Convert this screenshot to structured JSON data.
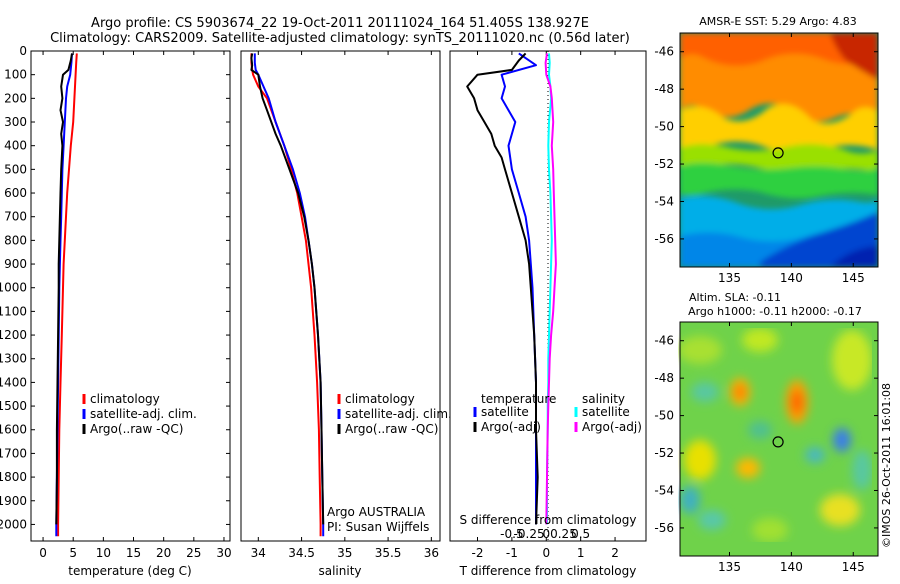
{
  "header": {
    "title_line1": "Argo profile: CS 5903674_22 19-Oct-2011 20111024_164 51.405S 138.927E",
    "title_line2": "Climatology: CARS2009. Satellite-adjusted climatology: synTS_20111020.nc (0.56d later)"
  },
  "colors": {
    "climatology": "#ff0000",
    "satellite": "#0000ff",
    "argo": "#000000",
    "salinity_satellite": "#00ffff",
    "salinity_argo": "#ff00ff"
  },
  "depth_ticks": [
    "0",
    "100",
    "200",
    "300",
    "400",
    "500",
    "600",
    "700",
    "800",
    "900",
    "1000",
    "1100",
    "1200",
    "1300",
    "1400",
    "1500",
    "1600",
    "1700",
    "1800",
    "1900",
    "2000"
  ],
  "chart_data": [
    {
      "type": "line",
      "panel": "temperature",
      "xlabel": "temperature (deg C)",
      "xlim": [
        -2,
        31
      ],
      "ylim": [
        2070,
        0
      ],
      "ylabel": "",
      "x_ticks": [
        "0",
        "5",
        "10",
        "15",
        "20",
        "25",
        "30"
      ],
      "x_tick_values": [
        0,
        5,
        10,
        15,
        20,
        25,
        30
      ],
      "legend": [
        "climatology",
        "satellite-adj. clim.",
        "Argo(..raw -QC)"
      ],
      "legend_position": "lower-middle",
      "series": [
        {
          "name": "climatology",
          "color": "#ff0000",
          "depth": [
            10,
            50,
            100,
            150,
            200,
            300,
            400,
            500,
            600,
            700,
            800,
            900,
            1000,
            1200,
            1400,
            1600,
            1800,
            2000,
            2050
          ],
          "values": [
            5.6,
            5.5,
            5.4,
            5.3,
            5.2,
            5.0,
            4.6,
            4.3,
            4.0,
            3.8,
            3.6,
            3.4,
            3.3,
            3.1,
            2.9,
            2.7,
            2.6,
            2.5,
            2.5
          ]
        },
        {
          "name": "satellite-adj. clim.",
          "color": "#0000ff",
          "depth": [
            10,
            50,
            100,
            150,
            200,
            300,
            400,
            500,
            600,
            700,
            800,
            900,
            1000,
            1200,
            1400,
            1600,
            1800,
            2000,
            2050
          ],
          "values": [
            4.8,
            4.7,
            4.5,
            4.0,
            3.8,
            3.6,
            3.4,
            3.2,
            3.1,
            3.0,
            2.9,
            2.8,
            2.7,
            2.6,
            2.5,
            2.4,
            2.3,
            2.2,
            2.2
          ]
        },
        {
          "name": "Argo(..raw -QC)",
          "color": "#000000",
          "depth": [
            10,
            40,
            80,
            100,
            150,
            200,
            250,
            300,
            350,
            400,
            500,
            600,
            700,
            800,
            900,
            1000,
            1200,
            1400,
            1600,
            1800,
            2000
          ],
          "values": [
            4.8,
            4.6,
            4.2,
            3.3,
            3.0,
            3.2,
            2.9,
            3.3,
            3.0,
            3.2,
            3.0,
            2.9,
            2.8,
            2.7,
            2.6,
            2.6,
            2.5,
            2.4,
            2.3,
            2.3,
            2.2
          ]
        }
      ]
    },
    {
      "type": "line",
      "panel": "salinity",
      "xlabel": "salinity",
      "xlim": [
        33.8,
        36.1
      ],
      "ylim": [
        2070,
        0
      ],
      "ylabel": "",
      "x_ticks": [
        "34",
        "34.5",
        "35",
        "35.5",
        "36"
      ],
      "x_tick_values": [
        34,
        34.5,
        35,
        35.5,
        36
      ],
      "legend": [
        "climatology",
        "satellite-adj. clim.",
        "Argo(..raw -QC)"
      ],
      "legend_position": "lower-middle",
      "annotation": {
        "line1": "Argo AUSTRALIA",
        "line2": "PI: Susan Wijffels"
      },
      "series": [
        {
          "name": "climatology",
          "color": "#ff0000",
          "depth": [
            10,
            50,
            80,
            100,
            150,
            200,
            300,
            400,
            500,
            600,
            700,
            800,
            900,
            1000,
            1200,
            1400,
            1600,
            1800,
            2000,
            2050
          ],
          "values": [
            33.92,
            33.92,
            33.93,
            33.94,
            34.0,
            34.1,
            34.2,
            34.3,
            34.38,
            34.45,
            34.5,
            34.55,
            34.58,
            34.61,
            34.65,
            34.68,
            34.7,
            34.71,
            34.72,
            34.72
          ]
        },
        {
          "name": "satellite-adj. clim.",
          "color": "#0000ff",
          "depth": [
            10,
            50,
            80,
            100,
            150,
            200,
            300,
            400,
            500,
            600,
            700,
            800,
            900,
            1000,
            1200,
            1400,
            1600,
            1800,
            2000,
            2050
          ],
          "values": [
            33.96,
            33.96,
            33.97,
            34.0,
            34.06,
            34.12,
            34.2,
            34.3,
            34.4,
            34.48,
            34.54,
            34.58,
            34.62,
            34.65,
            34.69,
            34.72,
            34.73,
            34.74,
            34.75,
            34.75
          ]
        },
        {
          "name": "Argo(..raw -QC)",
          "color": "#000000",
          "depth": [
            10,
            30,
            60,
            80,
            100,
            150,
            200,
            250,
            300,
            350,
            400,
            500,
            600,
            700,
            800,
            900,
            1000,
            1200,
            1400,
            1600,
            1800,
            2000
          ],
          "values": [
            33.93,
            33.92,
            33.93,
            33.92,
            34.0,
            34.02,
            34.05,
            34.1,
            34.15,
            34.2,
            34.26,
            34.36,
            34.46,
            34.53,
            34.58,
            34.62,
            34.65,
            34.69,
            34.72,
            34.73,
            34.74,
            34.75
          ]
        }
      ]
    },
    {
      "type": "line",
      "panel": "difference",
      "xlabel": "T difference from climatology",
      "xlabel_top": "S difference from climatology",
      "xlim": [
        -2.8,
        2.9
      ],
      "ylim": [
        2070,
        0
      ],
      "ylabel": "",
      "x_ticks": [
        "-2",
        "-1",
        "0",
        "1",
        "2"
      ],
      "x_tick_values": [
        -2,
        -1,
        0,
        1,
        2
      ],
      "s_ticks": [
        "-0.5",
        "-0.25",
        "0",
        "0.25",
        "0.5"
      ],
      "s_tick_values": [
        -0.5,
        -0.25,
        0,
        0.25,
        0.5
      ],
      "legend": {
        "temperature_title": "temperature",
        "salinity_title": "salinity",
        "entries": [
          "satellite",
          "Argo(-adj)",
          "satellite",
          "Argo(-adj)"
        ]
      },
      "series": [
        {
          "name": "satellite",
          "color": "#0000ff",
          "quantity": "temperature",
          "depth": [
            10,
            30,
            60,
            100,
            150,
            200,
            300,
            400,
            500,
            600,
            700,
            800,
            900,
            1000,
            1200,
            1400,
            1600,
            1800,
            2000
          ],
          "values": [
            -0.8,
            -0.6,
            -0.3,
            -1.3,
            -1.2,
            -1.3,
            -0.9,
            -1.1,
            -1.0,
            -0.8,
            -0.6,
            -0.5,
            -0.45,
            -0.4,
            -0.35,
            -0.3,
            -0.3,
            -0.3,
            -0.3
          ]
        },
        {
          "name": "Argo(-adj)",
          "color": "#000000",
          "quantity": "temperature",
          "depth": [
            10,
            40,
            80,
            100,
            150,
            200,
            250,
            300,
            350,
            400,
            450,
            500,
            600,
            700,
            800,
            900,
            1000,
            1200,
            1400,
            1600,
            1800,
            2000
          ],
          "values": [
            -0.6,
            -0.8,
            -1.0,
            -2.0,
            -2.3,
            -2.1,
            -2.0,
            -1.8,
            -1.6,
            -1.5,
            -1.3,
            -1.2,
            -1.0,
            -0.8,
            -0.6,
            -0.5,
            -0.45,
            -0.35,
            -0.3,
            -0.3,
            -0.25,
            -0.3
          ]
        },
        {
          "name": "satellite",
          "color": "#00ffff",
          "quantity": "salinity",
          "depth": [
            10,
            50,
            100,
            150,
            200,
            300,
            400,
            500,
            600,
            700,
            800,
            900,
            1000,
            1100,
            1200,
            1300,
            1400,
            1500,
            1600,
            1800,
            2000
          ],
          "values": [
            0.04,
            0.05,
            0.04,
            0.06,
            0.07,
            0.04,
            0.03,
            0.04,
            0.06,
            0.07,
            0.08,
            0.07,
            0.06,
            0.05,
            0.04,
            0.03,
            0.03,
            0.02,
            0.02,
            0.01,
            0.01
          ]
        },
        {
          "name": "Argo(-adj)",
          "color": "#ff00ff",
          "quantity": "salinity",
          "depth": [
            10,
            50,
            100,
            150,
            200,
            300,
            400,
            500,
            600,
            700,
            800,
            900,
            1000,
            1100,
            1200,
            1300,
            1400,
            1500,
            1600,
            1800,
            2000
          ],
          "values": [
            0.01,
            -0.01,
            0.0,
            0.06,
            0.08,
            0.1,
            0.08,
            0.1,
            0.11,
            0.12,
            0.13,
            0.14,
            0.12,
            0.1,
            0.07,
            0.05,
            0.04,
            0.03,
            0.02,
            0.01,
            0.0
          ]
        }
      ]
    },
    {
      "type": "heatmap",
      "panel": "sst_map",
      "title": "AMSR-E SST: 5.29 Argo: 4.83",
      "xlim": [
        131,
        147
      ],
      "ylim": [
        -57.5,
        -45
      ],
      "x_ticks": [
        "135",
        "140",
        "145"
      ],
      "x_tick_values": [
        135,
        140,
        145
      ],
      "y_ticks": [
        "-46",
        "-48",
        "-50",
        "-52",
        "-54",
        "-56"
      ],
      "y_tick_values": [
        -46,
        -48,
        -50,
        -52,
        -54,
        -56
      ],
      "marker": {
        "lon": 138.927,
        "lat": -51.405
      }
    },
    {
      "type": "heatmap",
      "panel": "sla_map",
      "title_line1": "Altim. SLA: -0.11",
      "title_line2": "Argo h1000: -0.11 h2000: -0.17",
      "xlim": [
        131,
        147
      ],
      "ylim": [
        -57.5,
        -45
      ],
      "x_ticks": [
        "135",
        "140",
        "145"
      ],
      "x_tick_values": [
        135,
        140,
        145
      ],
      "y_ticks": [
        "-46",
        "-48",
        "-50",
        "-52",
        "-54",
        "-56"
      ],
      "y_tick_values": [
        -46,
        -48,
        -50,
        -52,
        -54,
        -56
      ],
      "marker": {
        "lon": 138.927,
        "lat": -51.405
      }
    }
  ],
  "footer": {
    "credit": "©IMOS 26-Oct-2011 16:01:08"
  }
}
